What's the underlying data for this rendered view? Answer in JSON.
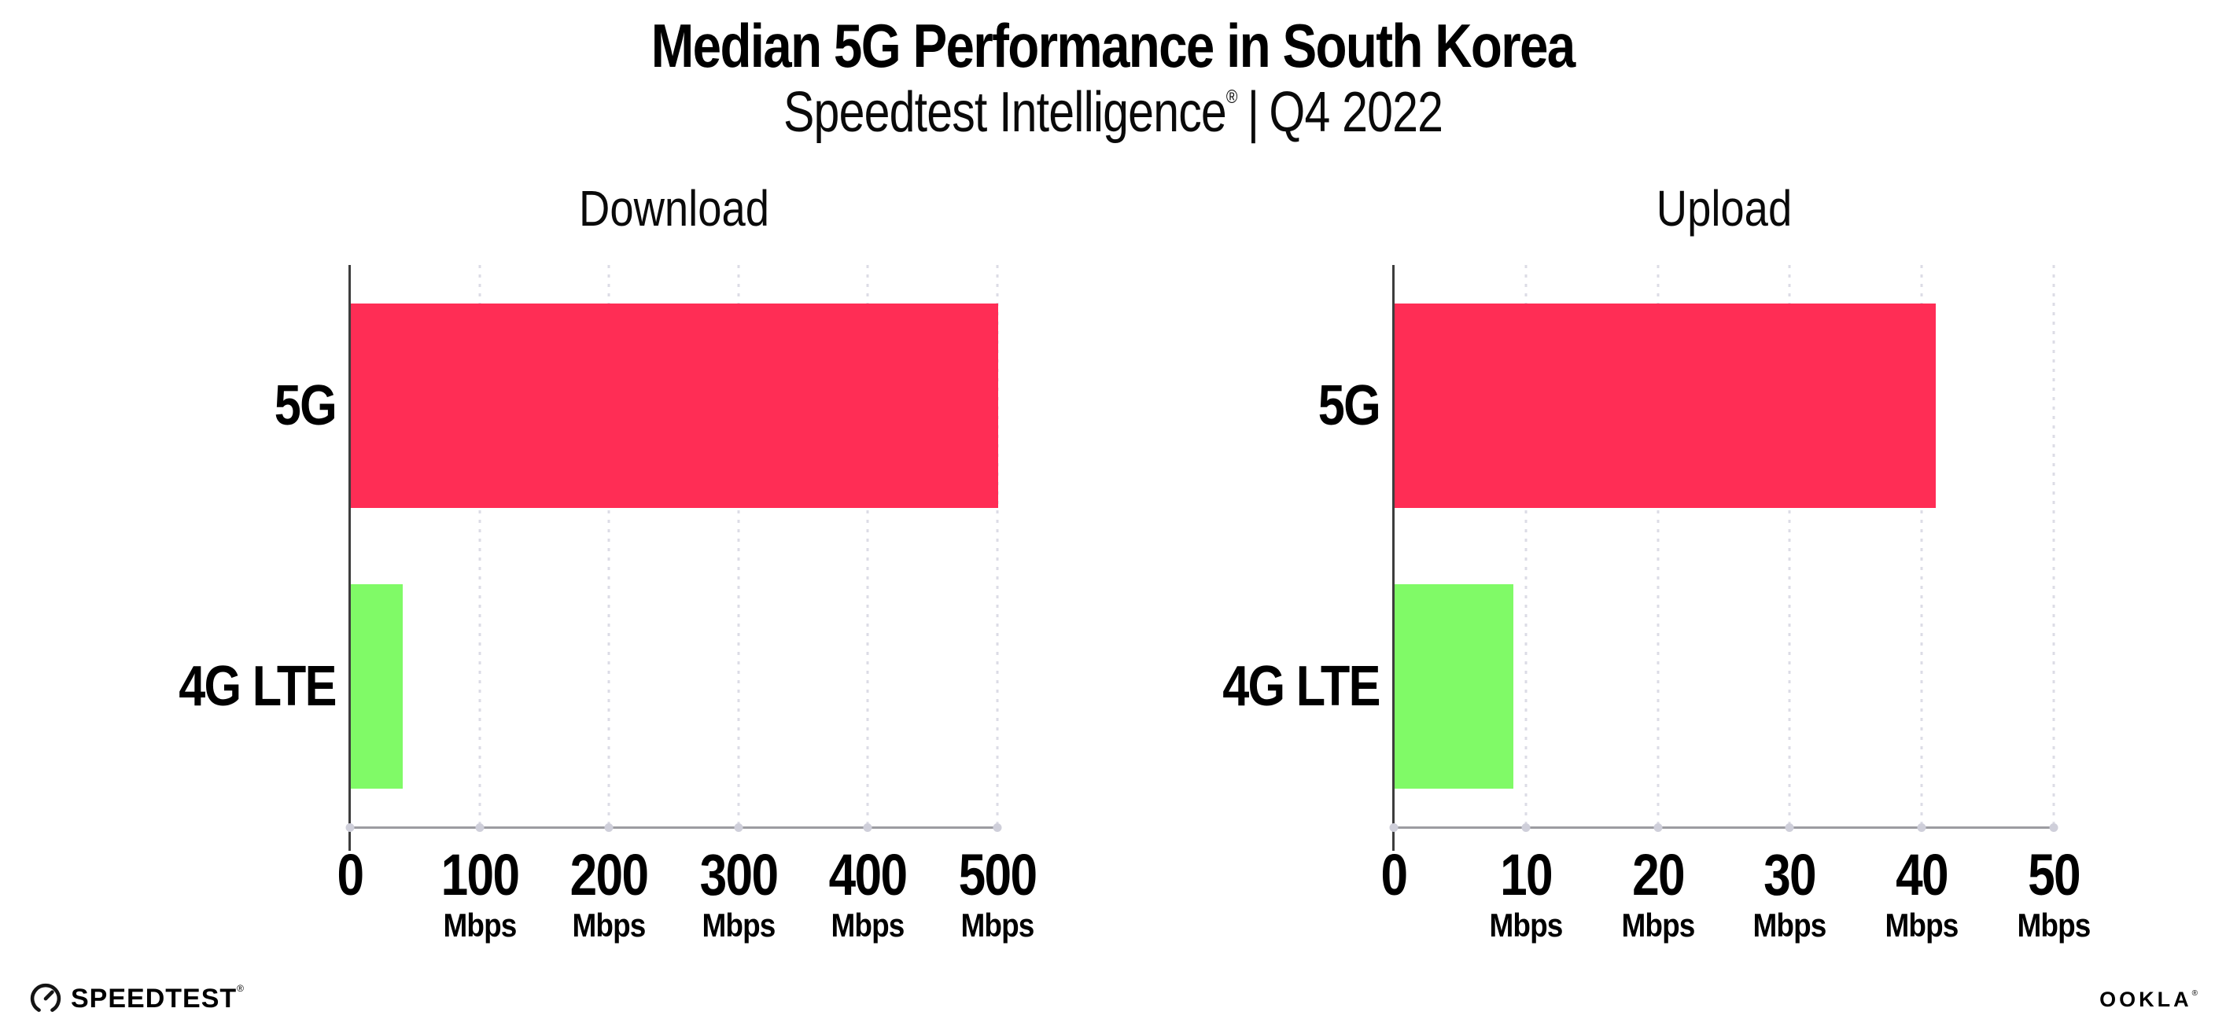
{
  "header": {
    "title": "Median 5G Performance in South Korea",
    "subtitle_brand": "Speedtest Intelligence",
    "subtitle_reg": "®",
    "subtitle_separator": "|",
    "subtitle_period": "Q4 2022"
  },
  "colors": {
    "bar_5g": "#ff2d55",
    "bar_4g_lte": "#80fa67",
    "y_axis_line": "#3d3d3d",
    "x_baseline": "#9c9ca1",
    "gridline_dots": "#dcdce6",
    "tick_dots": "#cfcfda",
    "text": "#000000",
    "background": "#ffffff"
  },
  "chart_data": [
    {
      "type": "bar",
      "orientation": "horizontal",
      "title": "Download",
      "categories": [
        "5G",
        "4G LTE"
      ],
      "values": [
        500,
        40
      ],
      "unit": "Mbps",
      "xlim": [
        0,
        500
      ],
      "xticks": [
        0,
        100,
        200,
        300,
        400,
        500
      ],
      "xtick_unit": "Mbps",
      "bar_colors": [
        "#ff2d55",
        "#80fa67"
      ],
      "grid": "dotted vertical gridlines at each tick",
      "legend": "none"
    },
    {
      "type": "bar",
      "orientation": "horizontal",
      "title": "Upload",
      "categories": [
        "5G",
        "4G LTE"
      ],
      "values": [
        41,
        9
      ],
      "unit": "Mbps",
      "xlim": [
        0,
        50
      ],
      "xticks": [
        0,
        10,
        20,
        30,
        40,
        50
      ],
      "xtick_unit": "Mbps",
      "bar_colors": [
        "#ff2d55",
        "#80fa67"
      ],
      "grid": "dotted vertical gridlines at each tick",
      "legend": "none"
    }
  ],
  "footer": {
    "speedtest_logo_text": "SPEEDTEST",
    "speedtest_trademark": "®",
    "ookla_logo_text": "OOKLA",
    "ookla_trademark": "®"
  }
}
